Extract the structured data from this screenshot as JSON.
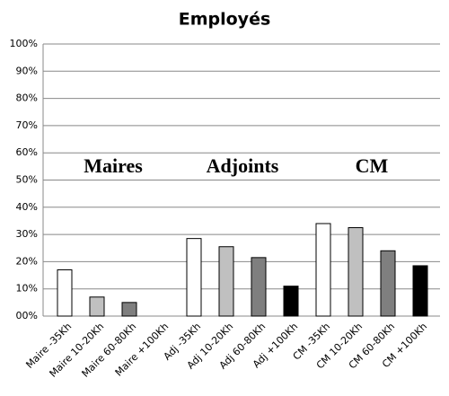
{
  "chart_data": {
    "type": "bar",
    "title": "Employés",
    "categories": [
      "Maire -35Kh",
      "Maire 10-20Kh",
      "Maire 60-80Kh",
      "Maire +100Kh",
      "Adj -35Kh",
      "Adj 10-20Kh",
      "Adj 60-80Kh",
      "Adj +100Kh",
      "CM -35Kh",
      "CM 10-20Kh",
      "CM 60-80Kh",
      "CM +100Kh"
    ],
    "values": [
      17,
      7,
      5,
      0,
      28.5,
      25.5,
      21.5,
      11,
      34,
      32.5,
      24,
      18.5
    ],
    "colors": [
      "#ffffff",
      "#c0c0c0",
      "#7f7f7f",
      "#000000"
    ],
    "annotations": [
      "Maires",
      "Adjoints",
      "CM"
    ],
    "ylim": [
      0,
      100
    ],
    "yticks": [
      {
        "value": 0,
        "label": "00%"
      },
      {
        "value": 10,
        "label": "10%"
      },
      {
        "value": 20,
        "label": "20%"
      },
      {
        "value": 30,
        "label": "30%"
      },
      {
        "value": 40,
        "label": "40%"
      },
      {
        "value": 50,
        "label": "50%"
      },
      {
        "value": 60,
        "label": "60%"
      },
      {
        "value": 70,
        "label": "70%"
      },
      {
        "value": 80,
        "label": "80%"
      },
      {
        "value": 90,
        "label": "90%"
      },
      {
        "value": 100,
        "label": "100%"
      }
    ],
    "grid": true
  }
}
